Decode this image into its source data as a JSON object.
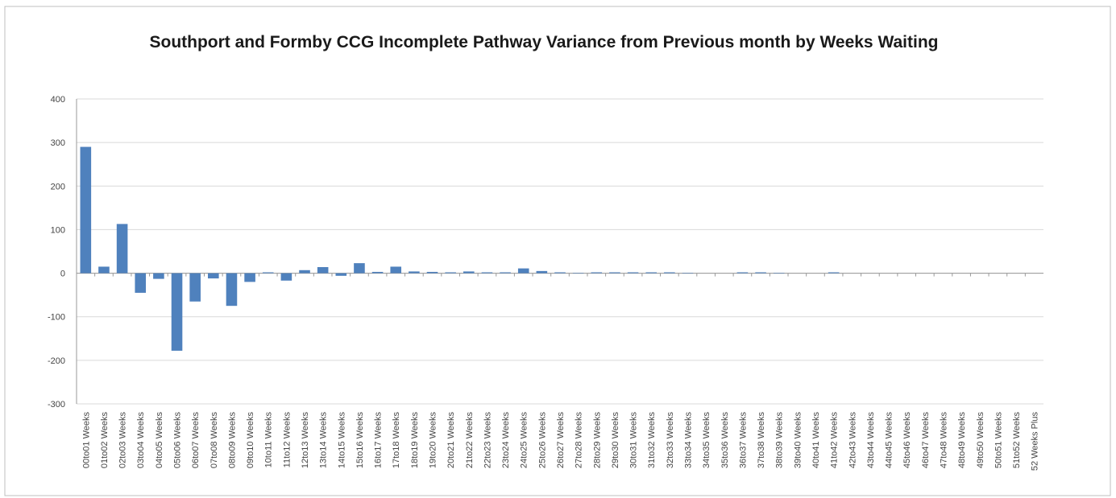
{
  "chart_data": {
    "type": "bar",
    "title": "Southport and Formby CCG Incomplete Pathway Variance from Previous month by Weeks Waiting",
    "categories": [
      "00to01 Weeks",
      "01to02 Weeks",
      "02to03 Weeks",
      "03to04 Weeks",
      "04to05 Weeks",
      "05to06 Weeks",
      "06to07 Weeks",
      "07to08 Weeks",
      "08to09 Weeks",
      "09to10 Weeks",
      "10to11 Weeks",
      "11to12 Weeks",
      "12to13 Weeks",
      "13to14 Weeks",
      "14to15 Weeks",
      "15to16 Weeks",
      "16to17 Weeks",
      "17to18 Weeks",
      "18to19 Weeks",
      "19to20 Weeks",
      "20to21 Weeks",
      "21to22 Weeks",
      "22to23 Weeks",
      "23to24 Weeks",
      "24to25 Weeks",
      "25to26 Weeks",
      "26to27 Weeks",
      "27to28 Weeks",
      "28to29 Weeks",
      "29to30 Weeks",
      "30to31 Weeks",
      "31to32 Weeks",
      "32to33 Weeks",
      "33to34 Weeks",
      "34to35 Weeks",
      "35to36 Weeks",
      "36to37 Weeks",
      "37to38 Weeks",
      "38to39 Weeks",
      "39to40 Weeks",
      "40to41 Weeks",
      "41to42 Weeks",
      "42to43 Weeks",
      "43to44 Weeks",
      "44to45 Weeks",
      "45to46 Weeks",
      "46to47 Weeks",
      "47to48 Weeks",
      "48to49 Weeks",
      "49to50 Weeks",
      "50to51 Weeks",
      "51to52 Weeks",
      "52 Weeks Plus"
    ],
    "values": [
      290,
      15,
      113,
      -45,
      -13,
      -178,
      -65,
      -12,
      -75,
      -20,
      2,
      -17,
      7,
      14,
      -6,
      23,
      3,
      15,
      4,
      3,
      2,
      4,
      2,
      2,
      11,
      5,
      2,
      1,
      2,
      2,
      2,
      2,
      2,
      1,
      0,
      0,
      2,
      2,
      1,
      0,
      0,
      2,
      0,
      0,
      0,
      0,
      0,
      0,
      0,
      0,
      0,
      0,
      0
    ],
    "color": "#4f81bd",
    "ylim": [
      -300,
      400
    ],
    "yticks": [
      -300,
      -200,
      -100,
      0,
      100,
      200,
      300,
      400
    ],
    "grid": true
  }
}
